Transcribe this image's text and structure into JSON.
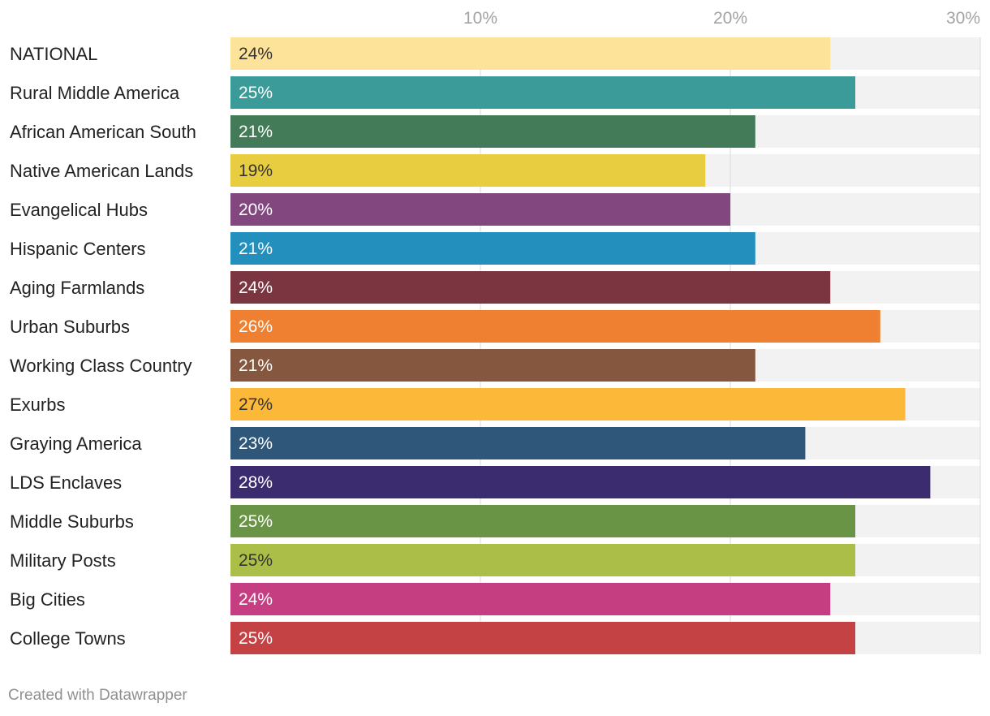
{
  "chart_data": {
    "type": "bar",
    "orientation": "horizontal",
    "xlim": [
      0,
      30
    ],
    "ticks": [
      {
        "value": 10,
        "label": "10%"
      },
      {
        "value": 20,
        "label": "20%"
      },
      {
        "value": 30,
        "label": "30%"
      }
    ],
    "value_suffix": "%",
    "grid": true,
    "rows": [
      {
        "label": "NATIONAL",
        "value": 24,
        "color": "#fde29a",
        "text_color": "#333333"
      },
      {
        "label": "Rural Middle America",
        "value": 25,
        "color": "#3b9b99",
        "text_color": "#ffffff"
      },
      {
        "label": "African American South",
        "value": 21,
        "color": "#437b58",
        "text_color": "#ffffff"
      },
      {
        "label": "Native American Lands",
        "value": 19,
        "color": "#e7cd3f",
        "text_color": "#333333"
      },
      {
        "label": "Evangelical Hubs",
        "value": 20,
        "color": "#81477e",
        "text_color": "#ffffff"
      },
      {
        "label": "Hispanic Centers",
        "value": 21,
        "color": "#238fbd",
        "text_color": "#ffffff"
      },
      {
        "label": "Aging Farmlands",
        "value": 24,
        "color": "#7b3540",
        "text_color": "#ffffff"
      },
      {
        "label": "Urban Suburbs",
        "value": 26,
        "color": "#ef8032",
        "text_color": "#ffffff"
      },
      {
        "label": "Working Class Country",
        "value": 21,
        "color": "#84573e",
        "text_color": "#ffffff"
      },
      {
        "label": "Exurbs",
        "value": 27,
        "color": "#fcb838",
        "text_color": "#333333"
      },
      {
        "label": "Graying America",
        "value": 23,
        "color": "#2e577a",
        "text_color": "#ffffff"
      },
      {
        "label": "LDS Enclaves",
        "value": 28,
        "color": "#3a2c6e",
        "text_color": "#ffffff"
      },
      {
        "label": "Middle Suburbs",
        "value": 25,
        "color": "#6a9445",
        "text_color": "#ffffff"
      },
      {
        "label": "Military Posts",
        "value": 25,
        "color": "#abbe48",
        "text_color": "#333333"
      },
      {
        "label": "Big Cities",
        "value": 24,
        "color": "#c53e82",
        "text_color": "#ffffff"
      },
      {
        "label": "College Towns",
        "value": 25,
        "color": "#c44144",
        "text_color": "#ffffff"
      }
    ]
  },
  "footer": {
    "credit": "Created with Datawrapper"
  }
}
